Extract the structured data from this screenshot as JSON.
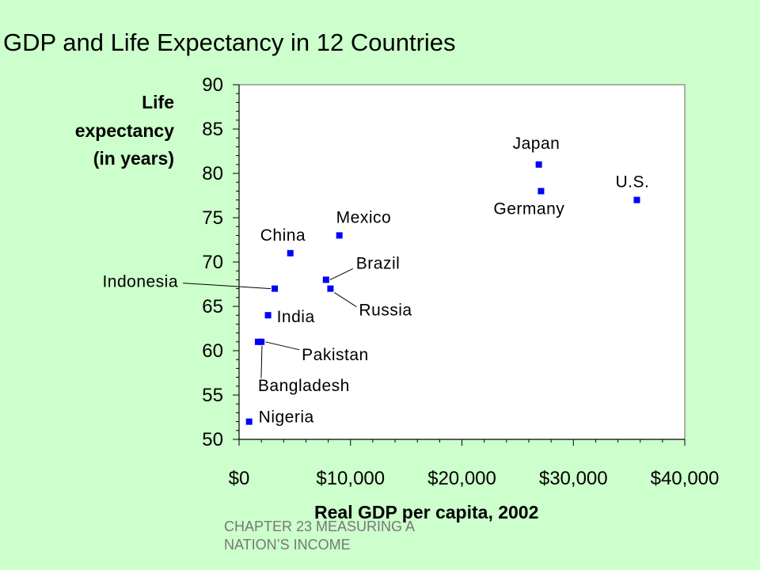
{
  "slide": {
    "title": "GDP and Life Expectancy in 12 Countries",
    "footer_line1": "CHAPTER 23   MEASURING A",
    "footer_line2": "NATION’S INCOME"
  },
  "colors": {
    "background": "#ccffcc",
    "plot_area": "#ffffff",
    "marker": "#0000ff"
  },
  "chart_data": {
    "type": "scatter",
    "title": "GDP and Life Expectancy in 12 Countries",
    "xlabel": "Real GDP per capita, 2002",
    "ylabel_lines": [
      "Life",
      "expectancy",
      "(in years)"
    ],
    "xlim": [
      0,
      40000
    ],
    "ylim": [
      50,
      90
    ],
    "xticks": [
      0,
      10000,
      20000,
      30000,
      40000
    ],
    "xtick_labels": [
      "$0",
      "$10,000",
      "$20,000",
      "$30,000",
      "$40,000"
    ],
    "yticks": [
      50,
      55,
      60,
      65,
      70,
      75,
      80,
      85,
      90
    ],
    "ytick_labels": [
      "50",
      "55",
      "60",
      "65",
      "70",
      "75",
      "80",
      "85",
      "90"
    ],
    "grid": false,
    "legend": "none",
    "points": [
      {
        "name": "Japan",
        "x": 26900,
        "y": 81
      },
      {
        "name": "Germany",
        "x": 27100,
        "y": 78
      },
      {
        "name": "U.S.",
        "x": 35700,
        "y": 77
      },
      {
        "name": "Mexico",
        "x": 9000,
        "y": 73
      },
      {
        "name": "China",
        "x": 4600,
        "y": 71
      },
      {
        "name": "Brazil",
        "x": 7800,
        "y": 68
      },
      {
        "name": "Russia",
        "x": 8200,
        "y": 67
      },
      {
        "name": "Indonesia",
        "x": 3200,
        "y": 67
      },
      {
        "name": "India",
        "x": 2600,
        "y": 64
      },
      {
        "name": "Pakistan",
        "x": 2000,
        "y": 61
      },
      {
        "name": "Bangladesh",
        "x": 1700,
        "y": 61
      },
      {
        "name": "Nigeria",
        "x": 900,
        "y": 52
      }
    ]
  }
}
